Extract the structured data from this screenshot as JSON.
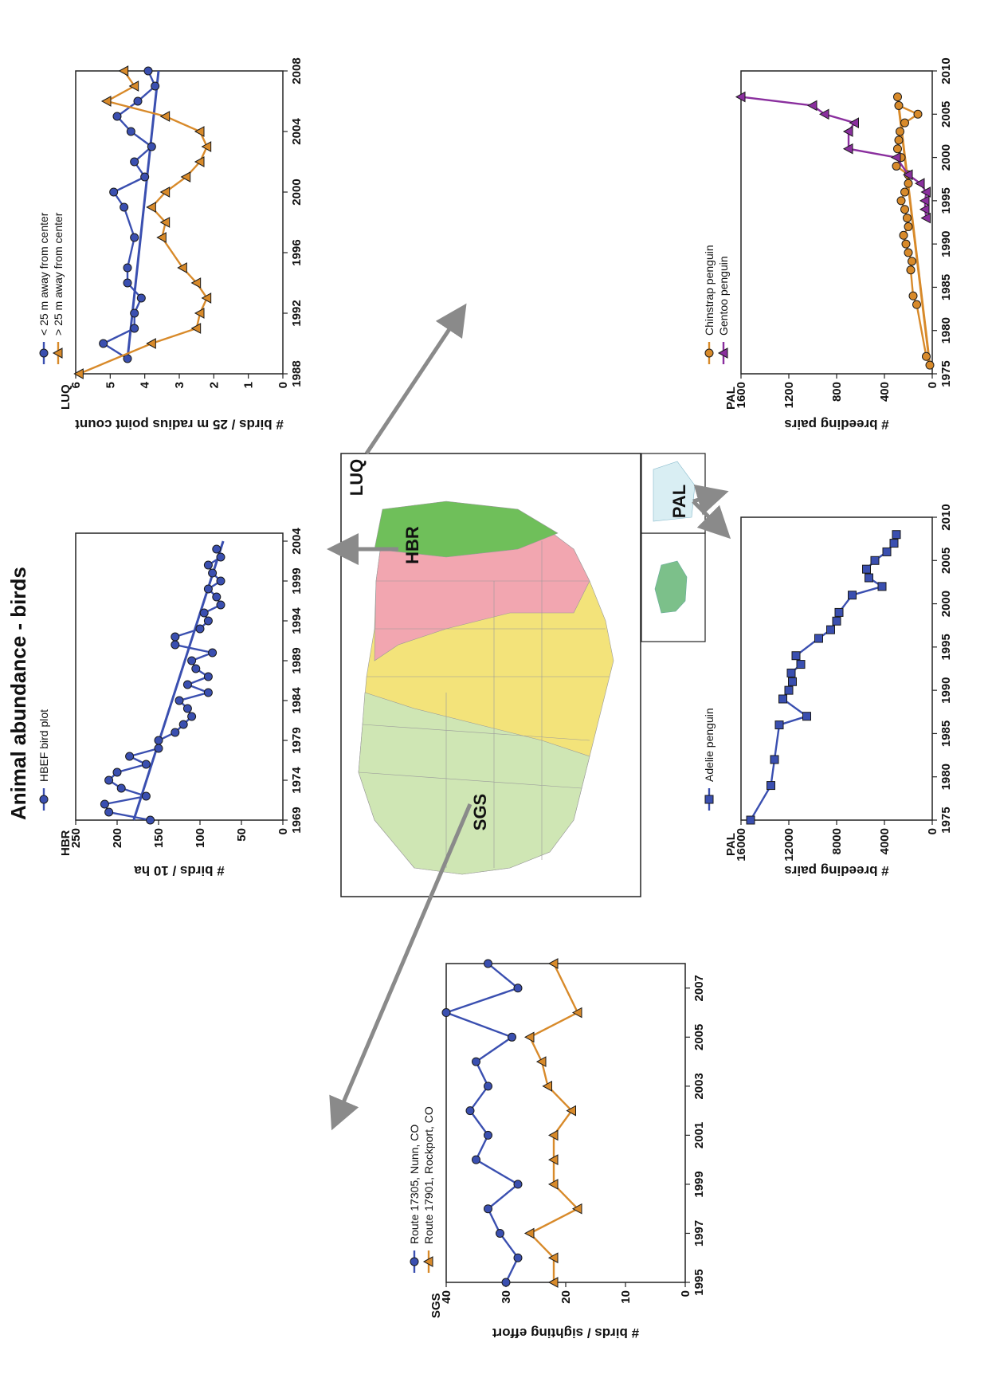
{
  "title": "Animal abundance - birds",
  "colors": {
    "blue": "#3a4fb0",
    "orange": "#d88a2a",
    "purple": "#8a2f9e",
    "arrow": "#8a8a8a"
  },
  "map": {
    "labels": [
      "SGS",
      "HBR",
      "LUQ",
      "PAL"
    ]
  },
  "chart_data": [
    {
      "id": "sgs",
      "type": "line",
      "site": "SGS",
      "ylabel": "# birds / sighting effort",
      "xlim": [
        1995,
        2008
      ],
      "ylim": [
        0,
        40
      ],
      "xticks": [
        1995,
        1997,
        1999,
        2001,
        2003,
        2005,
        2007
      ],
      "yticks": [
        0,
        10,
        20,
        30,
        40
      ],
      "legend": "top-left",
      "series": [
        {
          "name": "Route 17305, Nunn, CO",
          "marker": "circle",
          "color": "#3a4fb0",
          "x": [
            1995,
            1996,
            1997,
            1998,
            1999,
            2000,
            2001,
            2002,
            2003,
            2004,
            2005,
            2006,
            2007,
            2008
          ],
          "y": [
            30,
            28,
            31,
            33,
            28,
            35,
            33,
            36,
            33,
            35,
            29,
            40,
            28,
            33
          ]
        },
        {
          "name": "Route 17901, Rockport, CO",
          "marker": "triangle",
          "color": "#d88a2a",
          "x": [
            1995,
            1996,
            1997,
            1998,
            1999,
            2000,
            2001,
            2002,
            2003,
            2004,
            2005,
            2006,
            2008
          ],
          "y": [
            22,
            22,
            26,
            18,
            22,
            22,
            22,
            19,
            23,
            24,
            26,
            18,
            22
          ]
        }
      ]
    },
    {
      "id": "hbr",
      "type": "line",
      "site": "HBR",
      "ylabel": "# birds / 10 ha",
      "xlim": [
        1969,
        2005
      ],
      "ylim": [
        0,
        250
      ],
      "xticks": [
        1969,
        1974,
        1979,
        1984,
        1989,
        1994,
        1999,
        2004
      ],
      "yticks": [
        0,
        50,
        100,
        150,
        200,
        250
      ],
      "legend": "top-left",
      "series": [
        {
          "name": "HBEF bird plot",
          "marker": "circle",
          "color": "#3a4fb0",
          "x": [
            1969,
            1970,
            1971,
            1972,
            1973,
            1974,
            1975,
            1976,
            1977,
            1978,
            1979,
            1980,
            1981,
            1982,
            1983,
            1984,
            1985,
            1986,
            1987,
            1988,
            1989,
            1990,
            1991,
            1992,
            1993,
            1994,
            1995,
            1996,
            1997,
            1998,
            1999,
            2000,
            2001,
            2002,
            2003
          ],
          "y": [
            160,
            210,
            215,
            165,
            195,
            210,
            200,
            165,
            185,
            150,
            150,
            130,
            120,
            110,
            115,
            125,
            90,
            115,
            90,
            105,
            110,
            85,
            130,
            130,
            100,
            90,
            95,
            75,
            80,
            90,
            75,
            85,
            90,
            75,
            80
          ]
        }
      ],
      "trend": {
        "x": [
          1969,
          2004
        ],
        "y": [
          180,
          72
        ]
      }
    },
    {
      "id": "luq",
      "type": "line",
      "site": "LUQ",
      "ylabel": "# birds / 25 m radius point count",
      "xlim": [
        1988,
        2008
      ],
      "ylim": [
        0,
        6
      ],
      "xticks": [
        1988,
        1992,
        1996,
        2000,
        2004,
        2008
      ],
      "yticks": [
        0,
        1,
        2,
        3,
        4,
        5,
        6
      ],
      "legend": "top-left",
      "series": [
        {
          "name": "< 25 m away from center",
          "marker": "circle",
          "color": "#3a4fb0",
          "x": [
            1989,
            1990,
            1991,
            1992,
            1993,
            1994,
            1995,
            1997,
            1999,
            2000,
            2001,
            2002,
            2003,
            2004,
            2005,
            2006,
            2007,
            2008
          ],
          "y": [
            4.5,
            5.2,
            4.3,
            4.3,
            4.1,
            4.5,
            4.5,
            4.3,
            4.6,
            4.9,
            4.0,
            4.3,
            3.8,
            4.4,
            4.8,
            4.2,
            3.7,
            3.9
          ]
        },
        {
          "name": "> 25 m away from center",
          "marker": "triangle",
          "color": "#d88a2a",
          "x": [
            1988,
            1990,
            1991,
            1992,
            1993,
            1994,
            1995,
            1996,
            1997,
            1998,
            1999,
            2000,
            2001,
            2002,
            2003,
            2004,
            2005,
            2006,
            2007,
            2008
          ],
          "y": [
            5.9,
            3.8,
            2.5,
            2.4,
            2.2,
            2.5,
            2.9,
            null,
            3.5,
            3.4,
            3.8,
            3.4,
            2.8,
            2.4,
            2.2,
            2.4,
            3.4,
            5.1,
            4.3,
            4.6
          ]
        }
      ],
      "trends": [
        {
          "x": [
            1989,
            2008
          ],
          "y": [
            4.5,
            3.6
          ]
        }
      ]
    },
    {
      "id": "pal_adelie",
      "type": "line",
      "site": "PAL",
      "ylabel": "# breeding pairs",
      "xlim": [
        1975,
        2010
      ],
      "ylim": [
        0,
        16000
      ],
      "xticks": [
        1975,
        1980,
        1985,
        1990,
        1995,
        2000,
        2005,
        2010
      ],
      "yticks": [
        0,
        4000,
        8000,
        12000,
        16000
      ],
      "legend": "top-left",
      "series": [
        {
          "name": "Adelie penguin",
          "marker": "square",
          "color": "#3a4fb0",
          "x": [
            1975,
            1979,
            1982,
            1986,
            1987,
            1989,
            1990,
            1991,
            1992,
            1993,
            1994,
            1996,
            1997,
            1998,
            1999,
            2001,
            2002,
            2003,
            2004,
            2005,
            2006,
            2007,
            2008
          ],
          "y": [
            15200,
            13500,
            13200,
            12800,
            10500,
            12500,
            12000,
            11700,
            11800,
            11000,
            11400,
            9500,
            8500,
            8000,
            7800,
            6700,
            4200,
            5300,
            5500,
            4800,
            3800,
            3200,
            3000
          ]
        }
      ]
    },
    {
      "id": "pal_chinstrap_gentoo",
      "type": "line",
      "site": "PAL",
      "ylabel": "# breeding pairs",
      "xlim": [
        1975,
        2010
      ],
      "ylim": [
        0,
        1600
      ],
      "xticks": [
        1975,
        1980,
        1985,
        1990,
        1995,
        2000,
        2005,
        2010
      ],
      "yticks": [
        0,
        400,
        800,
        1200,
        1600
      ],
      "legend": "top-left",
      "series": [
        {
          "name": "Chinstrap penguin",
          "marker": "circle",
          "color": "#d88a2a",
          "x": [
            1976,
            1977,
            1983,
            1984,
            1987,
            1988,
            1989,
            1990,
            1991,
            1992,
            1993,
            1994,
            1995,
            1996,
            1997,
            1998,
            1999,
            2000,
            2001,
            2002,
            2003,
            2004,
            2005,
            2006,
            2007
          ],
          "y": [
            20,
            50,
            130,
            160,
            180,
            170,
            200,
            220,
            240,
            200,
            210,
            230,
            260,
            230,
            200,
            200,
            300,
            260,
            290,
            280,
            270,
            230,
            120,
            280,
            290
          ]
        },
        {
          "name": "Gentoo penguin",
          "marker": "triangle",
          "color": "#8a2f9e",
          "x": [
            1993,
            1994,
            1995,
            1996,
            1997,
            1998,
            2000,
            2001,
            2003,
            2004,
            2005,
            2006,
            2007
          ],
          "y": [
            50,
            60,
            60,
            50,
            100,
            200,
            300,
            700,
            700,
            650,
            900,
            1000,
            1600
          ]
        }
      ],
      "trends": [
        {
          "x": [
            1976,
            2007
          ],
          "y": [
            20,
            290
          ]
        }
      ]
    }
  ]
}
